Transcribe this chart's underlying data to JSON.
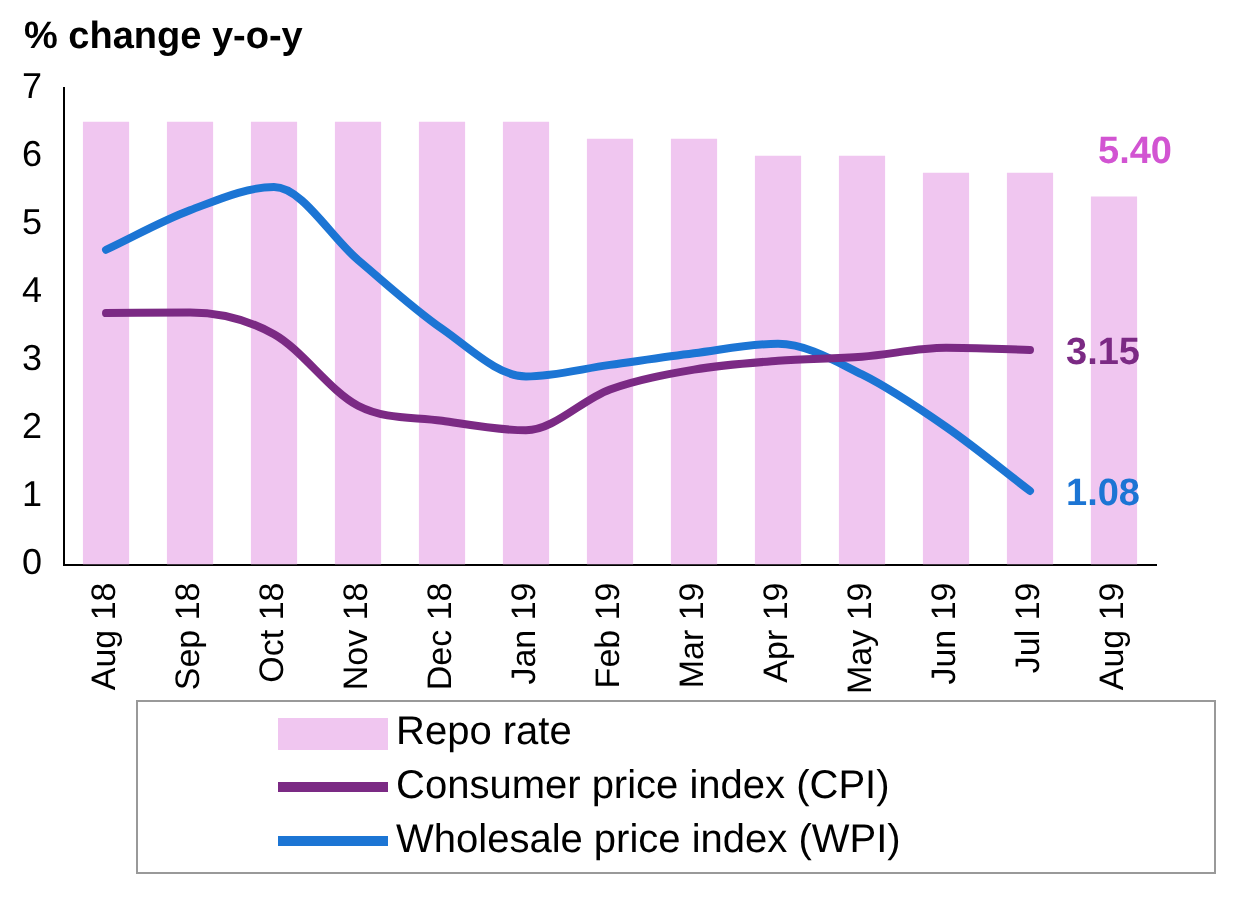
{
  "chart_data": {
    "type": "bar",
    "title": "% change y-o-y",
    "categories": [
      "Aug 18",
      "Sep 18",
      "Oct 18",
      "Nov 18",
      "Dec 18",
      "Jan 19",
      "Feb 19",
      "Mar 19",
      "Apr 19",
      "May 19",
      "Jun 19",
      "Jul 19",
      "Aug 19"
    ],
    "series": [
      {
        "name": "Repo rate",
        "color": "#f0c6f0",
        "values": [
          6.5,
          6.5,
          6.5,
          6.5,
          6.5,
          6.5,
          6.25,
          6.25,
          6.0,
          6.0,
          5.75,
          5.75,
          5.4
        ],
        "value_labels": [
          null,
          null,
          null,
          null,
          null,
          null,
          null,
          null,
          null,
          null,
          null,
          null,
          "5.40"
        ]
      },
      {
        "name": "Consumer price index (CPI)",
        "type": "line",
        "color": "#7b2a84",
        "values": [
          3.69,
          3.7,
          3.38,
          2.33,
          2.11,
          1.97,
          2.57,
          2.86,
          2.99,
          3.05,
          3.18,
          3.15,
          null
        ],
        "value_labels": [
          null,
          null,
          null,
          null,
          null,
          null,
          null,
          null,
          null,
          null,
          null,
          "3.15",
          null
        ]
      },
      {
        "name": "Wholesale price index (WPI)",
        "type": "line",
        "color": "#1c75d4",
        "values": [
          4.62,
          5.2,
          5.54,
          4.47,
          3.46,
          2.76,
          2.93,
          3.1,
          3.24,
          2.79,
          2.02,
          1.08,
          null
        ],
        "value_labels": [
          null,
          null,
          null,
          null,
          null,
          null,
          null,
          null,
          null,
          null,
          null,
          "1.08",
          null
        ]
      }
    ],
    "ylim": [
      0,
      7
    ],
    "yticks": [
      0,
      1,
      2,
      3,
      4,
      5,
      6,
      7
    ],
    "grid": false,
    "legend": "bottom",
    "marker": "none",
    "line_style": "solid"
  }
}
